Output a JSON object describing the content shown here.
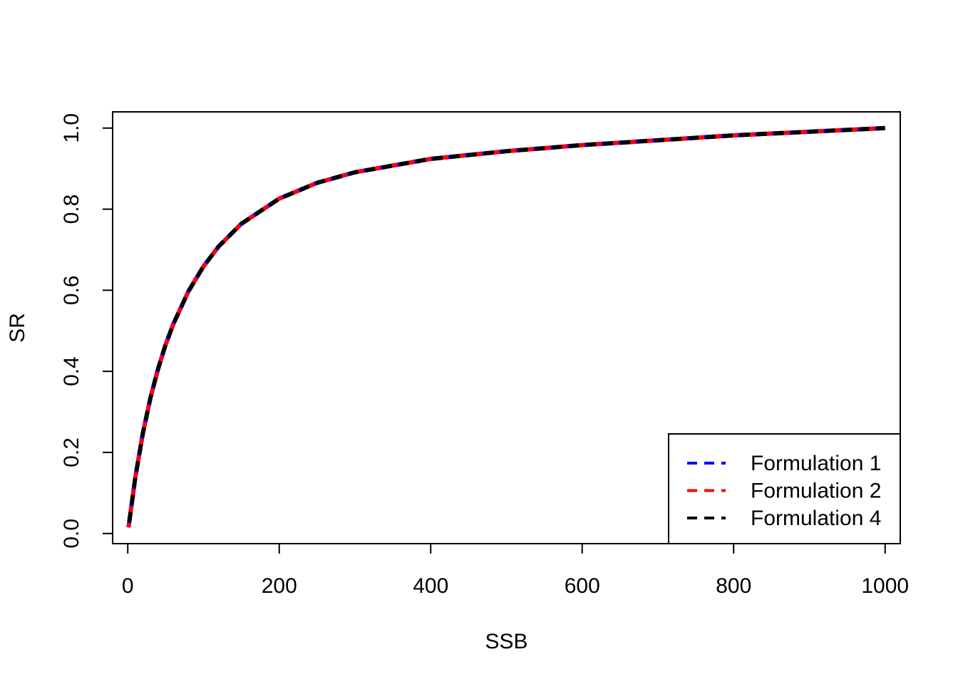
{
  "chart_data": {
    "type": "line",
    "title": "",
    "xlabel": "SSB",
    "ylabel": "SR",
    "xlim": [
      -20,
      1020
    ],
    "ylim": [
      -0.025,
      1.04
    ],
    "xticks": [
      0,
      200,
      400,
      600,
      800,
      1000
    ],
    "xtick_labels": [
      "0",
      "200",
      "400",
      "600",
      "800",
      "1000"
    ],
    "yticks": [
      0.0,
      0.2,
      0.4,
      0.6,
      0.8,
      1.0
    ],
    "ytick_labels": [
      "0.0",
      "0.2",
      "0.4",
      "0.6",
      "0.8",
      "1.0"
    ],
    "grid": false,
    "legend_position": "bottom-right",
    "x": [
      1,
      10,
      20,
      30,
      40,
      50,
      60,
      80,
      100,
      120,
      150,
      200,
      250,
      300,
      400,
      500,
      600,
      700,
      800,
      900,
      1000
    ],
    "series": [
      {
        "name": "Formulation 1",
        "color": "#0000ff",
        "linestyle": "dashed",
        "values": [
          0.015,
          0.139,
          0.248,
          0.335,
          0.406,
          0.466,
          0.516,
          0.597,
          0.659,
          0.708,
          0.764,
          0.826,
          0.865,
          0.891,
          0.924,
          0.943,
          0.958,
          0.97,
          0.982,
          0.991,
          1.0
        ]
      },
      {
        "name": "Formulation 2",
        "color": "#ff0000",
        "linestyle": "dashed",
        "values": [
          0.015,
          0.139,
          0.248,
          0.335,
          0.406,
          0.466,
          0.516,
          0.597,
          0.659,
          0.708,
          0.764,
          0.826,
          0.865,
          0.891,
          0.924,
          0.943,
          0.958,
          0.97,
          0.982,
          0.991,
          1.0
        ]
      },
      {
        "name": "Formulation 4",
        "color": "#000000",
        "linestyle": "dashed",
        "values": [
          0.015,
          0.139,
          0.248,
          0.335,
          0.406,
          0.466,
          0.516,
          0.597,
          0.659,
          0.708,
          0.764,
          0.826,
          0.865,
          0.891,
          0.924,
          0.943,
          0.958,
          0.97,
          0.982,
          0.991,
          1.0
        ]
      }
    ]
  }
}
